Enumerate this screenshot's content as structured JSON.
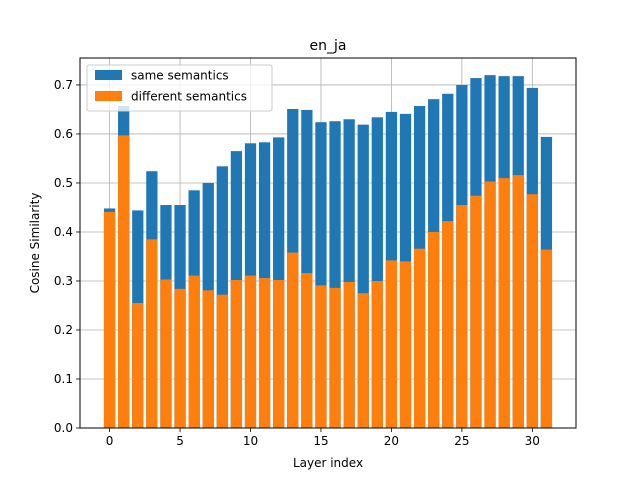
{
  "chart_data": {
    "type": "bar",
    "title": "en_ja",
    "xlabel": "Layer index",
    "ylabel": "Cosine Similarity",
    "xlim": [
      -2.1,
      33.1
    ],
    "ylim": [
      0,
      0.755
    ],
    "xticks": [
      0,
      5,
      10,
      15,
      20,
      25,
      30
    ],
    "yticks": [
      0.0,
      0.1,
      0.2,
      0.3,
      0.4,
      0.5,
      0.6,
      0.7
    ],
    "ytick_labels": [
      "0.0",
      "0.1",
      "0.2",
      "0.3",
      "0.4",
      "0.5",
      "0.6",
      "0.7"
    ],
    "grid": true,
    "legend_position": "top-left",
    "x": [
      0,
      1,
      2,
      3,
      4,
      5,
      6,
      7,
      8,
      9,
      10,
      11,
      12,
      13,
      14,
      15,
      16,
      17,
      18,
      19,
      20,
      21,
      22,
      23,
      24,
      25,
      26,
      27,
      28,
      29,
      30,
      31
    ],
    "series": [
      {
        "name": "same semantics",
        "color": "#1f77b4",
        "values": [
          0.448,
          0.657,
          0.444,
          0.524,
          0.455,
          0.455,
          0.485,
          0.5,
          0.534,
          0.565,
          0.581,
          0.583,
          0.593,
          0.651,
          0.649,
          0.624,
          0.626,
          0.63,
          0.619,
          0.634,
          0.645,
          0.641,
          0.657,
          0.671,
          0.682,
          0.7,
          0.714,
          0.72,
          0.718,
          0.718,
          0.694,
          0.594
        ]
      },
      {
        "name": "different semantics",
        "color": "#ff7f0e",
        "values": [
          0.441,
          0.597,
          0.255,
          0.385,
          0.303,
          0.284,
          0.311,
          0.281,
          0.272,
          0.302,
          0.311,
          0.306,
          0.302,
          0.358,
          0.316,
          0.291,
          0.286,
          0.298,
          0.275,
          0.3,
          0.342,
          0.34,
          0.366,
          0.4,
          0.422,
          0.455,
          0.474,
          0.503,
          0.51,
          0.516,
          0.477,
          0.364
        ]
      }
    ]
  }
}
